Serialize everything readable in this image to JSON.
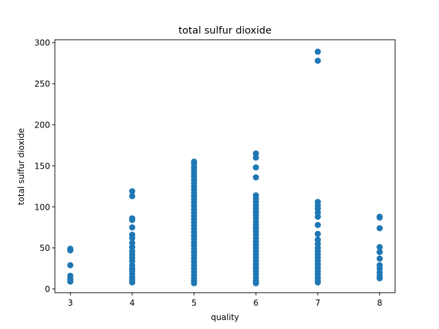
{
  "chart_data": {
    "type": "scatter",
    "title": "total sulfur dioxide",
    "xlabel": "quality",
    "ylabel": "total sulfur dioxide",
    "xlim": [
      2.75,
      8.25
    ],
    "ylim": [
      -4.5,
      303.5
    ],
    "xticks": [
      3,
      4,
      5,
      6,
      7,
      8
    ],
    "yticks": [
      0,
      50,
      100,
      150,
      200,
      250,
      300
    ],
    "grid": false,
    "legend": "none",
    "marker_color": "#1f77b4",
    "series": [
      {
        "points": [
          [
            3,
            49
          ],
          [
            3,
            47
          ],
          [
            3,
            29
          ],
          [
            3,
            16
          ],
          [
            3,
            12
          ],
          [
            3,
            9
          ],
          [
            4,
            119
          ],
          [
            4,
            113
          ],
          [
            4,
            86
          ],
          [
            4,
            84
          ],
          [
            4,
            75
          ],
          [
            4,
            66
          ],
          [
            4,
            62
          ],
          [
            4,
            56
          ],
          [
            4,
            51
          ],
          [
            4,
            46
          ],
          [
            4,
            42
          ],
          [
            4,
            38
          ],
          [
            4,
            34
          ],
          [
            4,
            29
          ],
          [
            4,
            25
          ],
          [
            4,
            22
          ],
          [
            4,
            18
          ],
          [
            4,
            14
          ],
          [
            4,
            11
          ],
          [
            4,
            8
          ],
          [
            5,
            155
          ],
          [
            5,
            152
          ],
          [
            5,
            148
          ],
          [
            5,
            145
          ],
          [
            5,
            141
          ],
          [
            5,
            137
          ],
          [
            5,
            133
          ],
          [
            5,
            129
          ],
          [
            5,
            125
          ],
          [
            5,
            121
          ],
          [
            5,
            117
          ],
          [
            5,
            113
          ],
          [
            5,
            109
          ],
          [
            5,
            105
          ],
          [
            5,
            101
          ],
          [
            5,
            97
          ],
          [
            5,
            93
          ],
          [
            5,
            89
          ],
          [
            5,
            85
          ],
          [
            5,
            81
          ],
          [
            5,
            77
          ],
          [
            5,
            73
          ],
          [
            5,
            69
          ],
          [
            5,
            65
          ],
          [
            5,
            61
          ],
          [
            5,
            57
          ],
          [
            5,
            53
          ],
          [
            5,
            49
          ],
          [
            5,
            45
          ],
          [
            5,
            41
          ],
          [
            5,
            37
          ],
          [
            5,
            33
          ],
          [
            5,
            29
          ],
          [
            5,
            25
          ],
          [
            5,
            21
          ],
          [
            5,
            17
          ],
          [
            5,
            13
          ],
          [
            5,
            10
          ],
          [
            5,
            7
          ],
          [
            6,
            165
          ],
          [
            6,
            160
          ],
          [
            6,
            148
          ],
          [
            6,
            136
          ],
          [
            6,
            114
          ],
          [
            6,
            110
          ],
          [
            6,
            106
          ],
          [
            6,
            102
          ],
          [
            6,
            98
          ],
          [
            6,
            94
          ],
          [
            6,
            90
          ],
          [
            6,
            86
          ],
          [
            6,
            82
          ],
          [
            6,
            78
          ],
          [
            6,
            74
          ],
          [
            6,
            70
          ],
          [
            6,
            66
          ],
          [
            6,
            62
          ],
          [
            6,
            58
          ],
          [
            6,
            54
          ],
          [
            6,
            50
          ],
          [
            6,
            46
          ],
          [
            6,
            42
          ],
          [
            6,
            38
          ],
          [
            6,
            34
          ],
          [
            6,
            30
          ],
          [
            6,
            26
          ],
          [
            6,
            22
          ],
          [
            6,
            18
          ],
          [
            6,
            14
          ],
          [
            6,
            10
          ],
          [
            6,
            7
          ],
          [
            7,
            289
          ],
          [
            7,
            278
          ],
          [
            7,
            106
          ],
          [
            7,
            102
          ],
          [
            7,
            98
          ],
          [
            7,
            93
          ],
          [
            7,
            88
          ],
          [
            7,
            78
          ],
          [
            7,
            67
          ],
          [
            7,
            60
          ],
          [
            7,
            55
          ],
          [
            7,
            50
          ],
          [
            7,
            46
          ],
          [
            7,
            42
          ],
          [
            7,
            38
          ],
          [
            7,
            34
          ],
          [
            7,
            30
          ],
          [
            7,
            26
          ],
          [
            7,
            22
          ],
          [
            7,
            18
          ],
          [
            7,
            14
          ],
          [
            7,
            11
          ],
          [
            7,
            8
          ],
          [
            8,
            88
          ],
          [
            8,
            87
          ],
          [
            8,
            74
          ],
          [
            8,
            51
          ],
          [
            8,
            45
          ],
          [
            8,
            37
          ],
          [
            8,
            29
          ],
          [
            8,
            25
          ],
          [
            8,
            20
          ],
          [
            8,
            16
          ],
          [
            8,
            13
          ]
        ]
      }
    ]
  }
}
